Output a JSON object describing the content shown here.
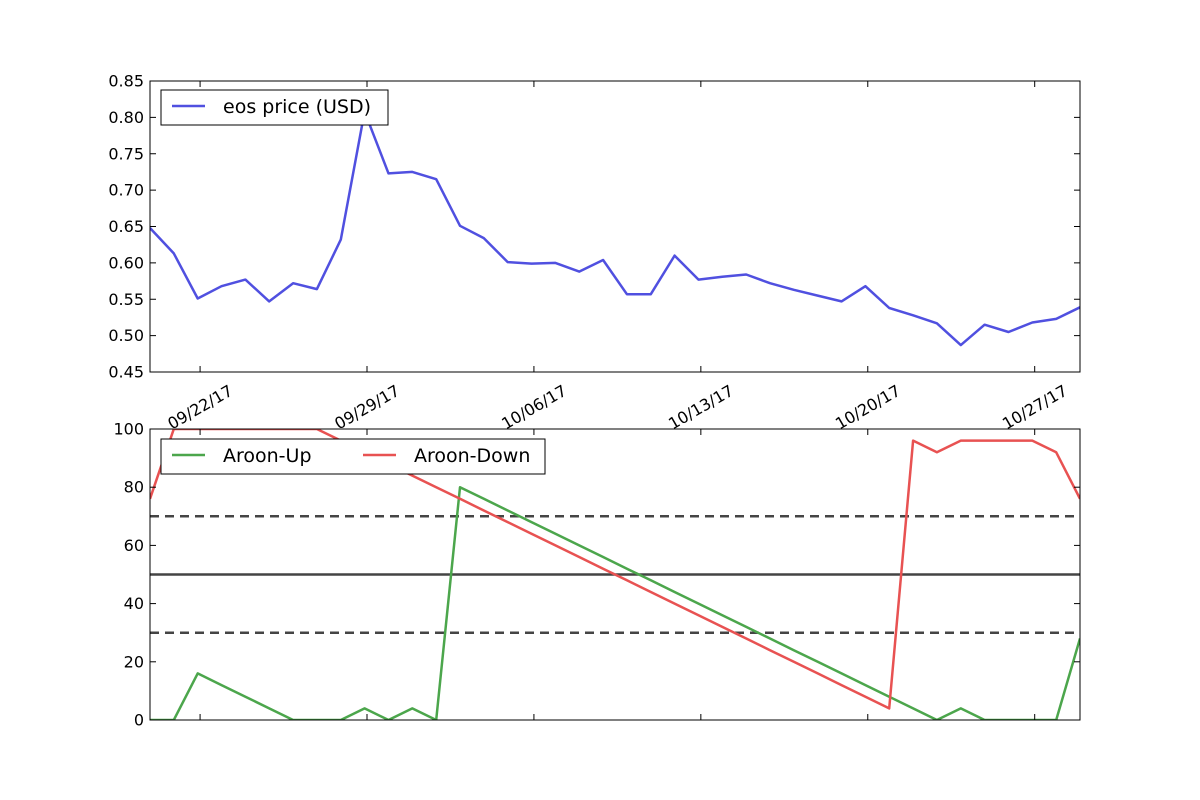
{
  "colors": {
    "price": "#5050e0",
    "aroon_up": "#4ca64c",
    "aroon_down": "#e85252",
    "threshold": "#444444",
    "midline": "#444444"
  },
  "chart_data": [
    {
      "type": "line",
      "title": "",
      "xlabel": "",
      "ylabel": "",
      "x_ticks": [
        "09/22/17",
        "09/29/17",
        "10/06/17",
        "10/13/17",
        "10/20/17",
        "10/27/17"
      ],
      "x_range_days": [
        -2.1,
        36.9
      ],
      "ylim": [
        0.45,
        0.85
      ],
      "y_ticks": [
        "0.45",
        "0.50",
        "0.55",
        "0.60",
        "0.65",
        "0.70",
        "0.75",
        "0.80",
        "0.85"
      ],
      "legend_position": "top-left",
      "series": [
        {
          "name": "eos price (USD)",
          "color_key": "price",
          "values": [
            0.648,
            0.613,
            0.551,
            0.568,
            0.577,
            0.547,
            0.572,
            0.564,
            0.632,
            0.808,
            0.723,
            0.725,
            0.715,
            0.651,
            0.634,
            0.601,
            0.599,
            0.6,
            0.588,
            0.604,
            0.557,
            0.557,
            0.61,
            0.577,
            0.581,
            0.584,
            0.572,
            0.563,
            0.555,
            0.547,
            0.568,
            0.538,
            0.528,
            0.517,
            0.487,
            0.515,
            0.505,
            0.518,
            0.523,
            0.539
          ]
        }
      ]
    },
    {
      "type": "line",
      "title": "",
      "xlabel": "",
      "ylabel": "",
      "ylim": [
        0,
        100
      ],
      "y_ticks": [
        "0",
        "20",
        "40",
        "60",
        "80",
        "100"
      ],
      "legend_position": "top-left",
      "reference_lines": [
        {
          "y": 70,
          "style": "dashed",
          "color_key": "threshold"
        },
        {
          "y": 50,
          "style": "solid",
          "color_key": "midline"
        },
        {
          "y": 30,
          "style": "dashed",
          "color_key": "threshold"
        }
      ],
      "series": [
        {
          "name": "Aroon-Up",
          "color_key": "aroon_up",
          "values": [
            0,
            0,
            16,
            12,
            8,
            4,
            0,
            0,
            0,
            4,
            0,
            4,
            0,
            80,
            76,
            72,
            68,
            64,
            60,
            56,
            52,
            48,
            44,
            40,
            36,
            32,
            28,
            24,
            20,
            16,
            12,
            8,
            4,
            0,
            4,
            0,
            0,
            0,
            0,
            28
          ]
        },
        {
          "name": "Aroon-Down",
          "color_key": "aroon_down",
          "values": [
            76,
            100,
            100,
            100,
            100,
            100,
            100,
            100,
            96,
            92,
            88,
            84,
            80,
            76,
            72,
            68,
            64,
            60,
            56,
            52,
            48,
            44,
            40,
            36,
            32,
            28,
            24,
            20,
            16,
            12,
            8,
            4,
            96,
            92,
            96,
            96,
            96,
            96,
            92,
            76
          ]
        }
      ]
    }
  ]
}
